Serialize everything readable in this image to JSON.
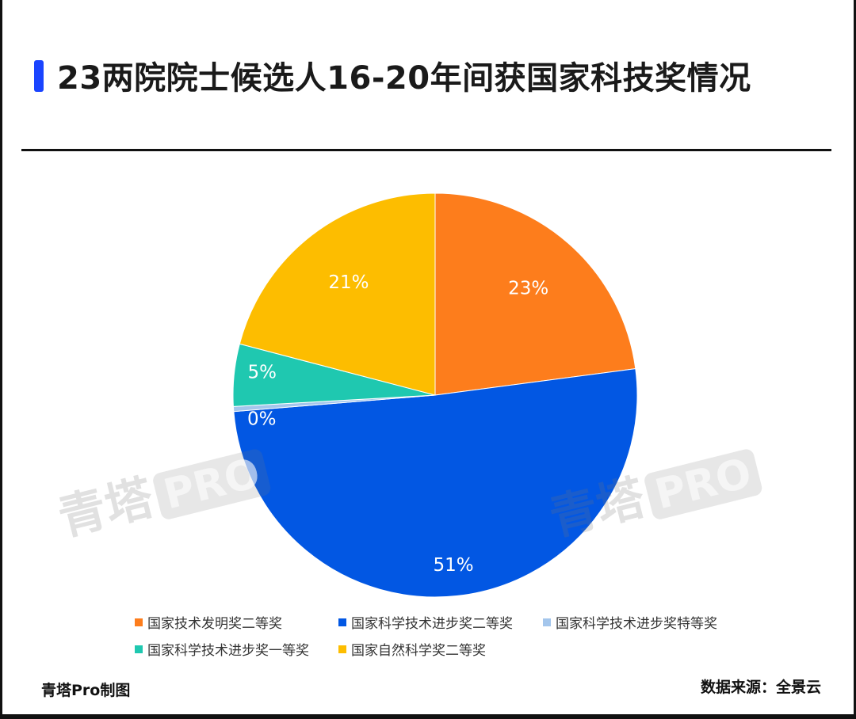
{
  "title": "23两院院士候选人16-20年间获国家科技奖情况",
  "footer": {
    "credit": "青塔Pro制图",
    "source": "数据来源：全景云"
  },
  "watermark": {
    "text": "青塔",
    "badge": "PRO"
  },
  "colors": {
    "accent": "#1a44ff"
  },
  "chart_data": {
    "type": "pie",
    "title": "23两院院士候选人16-20年间获国家科技奖情况",
    "start_angle": "12 o'clock",
    "direction": "clockwise",
    "legend_position": "bottom",
    "slices": [
      {
        "name": "国家技术发明奖二等奖",
        "value": 23,
        "label": "23%",
        "color": "#fd7d1c"
      },
      {
        "name": "国家科学技术进步奖二等奖",
        "value": 51,
        "label": "51%",
        "color": "#0257e3"
      },
      {
        "name": "国家科学技术进步奖特等奖",
        "value": 0.4,
        "label": "0%",
        "color": "#a4c6ec"
      },
      {
        "name": "国家科学技术进步奖一等奖",
        "value": 5,
        "label": "5%",
        "color": "#1fc8b0"
      },
      {
        "name": "国家自然科学奖二等奖",
        "value": 21,
        "label": "21%",
        "color": "#fdbd00"
      }
    ]
  }
}
